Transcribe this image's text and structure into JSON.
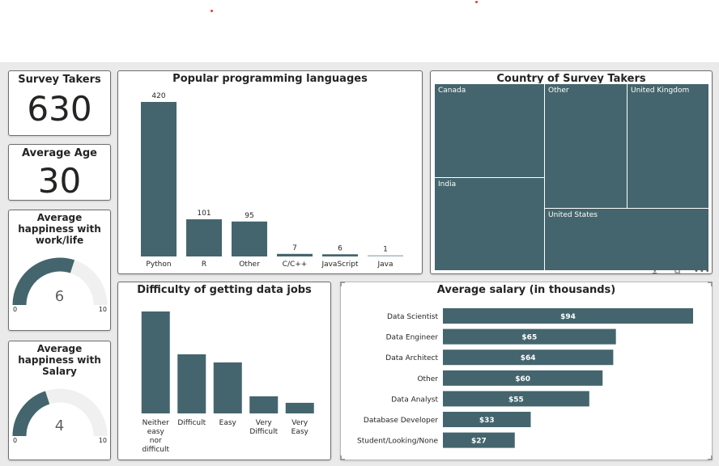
{
  "colors": {
    "bar": "#44656d",
    "gauge_track": "#f0f0f0",
    "accent_dot": "#e0393e"
  },
  "kpi_survey_takers": {
    "title": "Survey Takers",
    "value": "630"
  },
  "kpi_average_age": {
    "title": "Average Age",
    "value": "30"
  },
  "gauge_work_life": {
    "title": "Average happiness with work/life",
    "value": "6",
    "min": "0",
    "max": "10",
    "fraction": 0.6
  },
  "gauge_salary": {
    "title": "Average happiness with Salary",
    "value": "4",
    "min": "0",
    "max": "10",
    "fraction": 0.4
  },
  "treemap": {
    "title": "Country of Survey Takers",
    "items": [
      {
        "label": "Canada"
      },
      {
        "label": "India"
      },
      {
        "label": "Other"
      },
      {
        "label": "United Kingdom"
      },
      {
        "label": "United States"
      }
    ]
  },
  "visual_header_icons": [
    "filter-icon",
    "focus-mode-icon",
    "more-options-icon"
  ],
  "chart_data": [
    {
      "type": "bar",
      "title": "Popular programming languages",
      "categories": [
        "Python",
        "R",
        "Other",
        "C/C++",
        "JavaScript",
        "Java"
      ],
      "values": [
        420,
        101,
        95,
        7,
        6,
        1
      ],
      "data_labels": [
        "420",
        "101",
        "95",
        "7",
        "6",
        "1"
      ],
      "xlabel": "",
      "ylabel": "",
      "ylim": [
        0,
        420
      ],
      "grid": false
    },
    {
      "type": "bar",
      "title": "Difficulty of getting data jobs",
      "categories": [
        "Neither easy nor difficult",
        "Difficult",
        "Easy",
        "Very Difficult",
        "Very Easy"
      ],
      "category_lines": [
        [
          "Neither",
          "easy",
          "nor",
          "difficult"
        ],
        [
          "Difficult"
        ],
        [
          "Easy"
        ],
        [
          "Very",
          "Difficult"
        ],
        [
          "Very",
          "Easy"
        ]
      ],
      "values": [
        250,
        145,
        125,
        42,
        26
      ],
      "xlabel": "",
      "ylabel": "",
      "grid": false
    },
    {
      "type": "bar",
      "orientation": "horizontal",
      "title": "Average salary (in thousands)",
      "categories": [
        "Data Scientist",
        "Data Engineer",
        "Data Architect",
        "Other",
        "Data Analyst",
        "Database Developer",
        "Student/Looking/None"
      ],
      "values": [
        94,
        65,
        64,
        60,
        55,
        33,
        27
      ],
      "data_labels": [
        "$94",
        "$65",
        "$64",
        "$60",
        "$55",
        "$33",
        "$27"
      ],
      "xlabel": "",
      "ylabel": "",
      "grid": false
    }
  ]
}
